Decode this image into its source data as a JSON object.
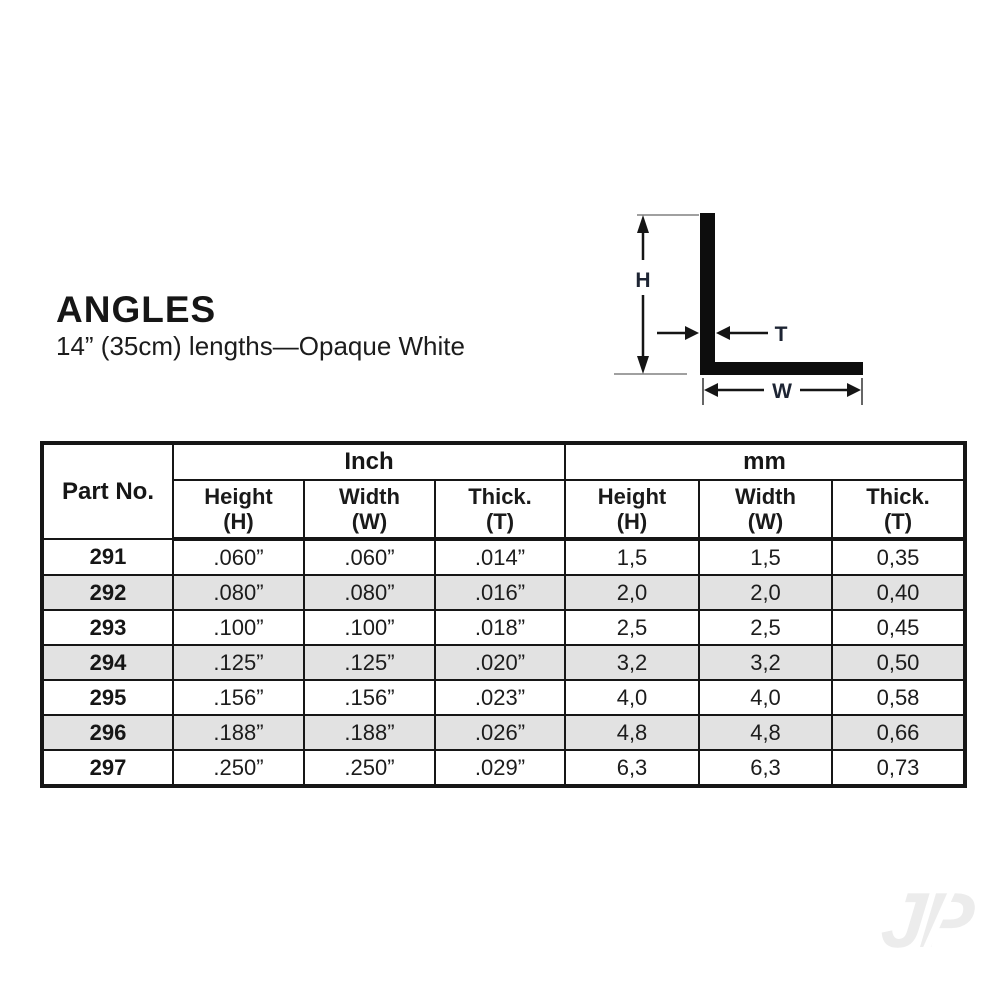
{
  "header": {
    "title": "ANGLES",
    "subtitle": "14” (35cm) lengths—Opaque White"
  },
  "diagram": {
    "h_label": "H",
    "t_label": "T",
    "w_label": "W"
  },
  "table": {
    "part_header": "Part No.",
    "sections": [
      {
        "label": "Inch",
        "cols": [
          {
            "l1": "Height",
            "l2": "(H)"
          },
          {
            "l1": "Width",
            "l2": "(W)"
          },
          {
            "l1": "Thick.",
            "l2": "(T)"
          }
        ]
      },
      {
        "label": "mm",
        "cols": [
          {
            "l1": "Height",
            "l2": "(H)"
          },
          {
            "l1": "Width",
            "l2": "(W)"
          },
          {
            "l1": "Thick.",
            "l2": "(T)"
          }
        ]
      }
    ],
    "rows": [
      {
        "cells": [
          "291",
          ".060”",
          ".060”",
          ".014”",
          "1,5",
          "1,5",
          "0,35"
        ]
      },
      {
        "cells": [
          "292",
          ".080”",
          ".080”",
          ".016”",
          "2,0",
          "2,0",
          "0,40"
        ]
      },
      {
        "cells": [
          "293",
          ".100”",
          ".100”",
          ".018”",
          "2,5",
          "2,5",
          "0,45"
        ]
      },
      {
        "cells": [
          "294",
          ".125”",
          ".125”",
          ".020”",
          "3,2",
          "3,2",
          "0,50"
        ]
      },
      {
        "cells": [
          "295",
          ".156”",
          ".156”",
          ".023”",
          "4,0",
          "4,0",
          "0,58"
        ]
      },
      {
        "cells": [
          "296",
          ".188”",
          ".188”",
          ".026”",
          "4,8",
          "4,8",
          "0,66"
        ]
      },
      {
        "cells": [
          "297",
          ".250”",
          ".250”",
          ".029”",
          "6,3",
          "6,3",
          "0,73"
        ]
      }
    ]
  },
  "watermark": {
    "text": "JP"
  },
  "colors": {
    "text": "#1a1a1a",
    "row_alt": "#e2e2e2",
    "shape_black": "#0d0d0d",
    "extension_gray": "#a0a0a0",
    "watermark_gray": "#ececec"
  }
}
